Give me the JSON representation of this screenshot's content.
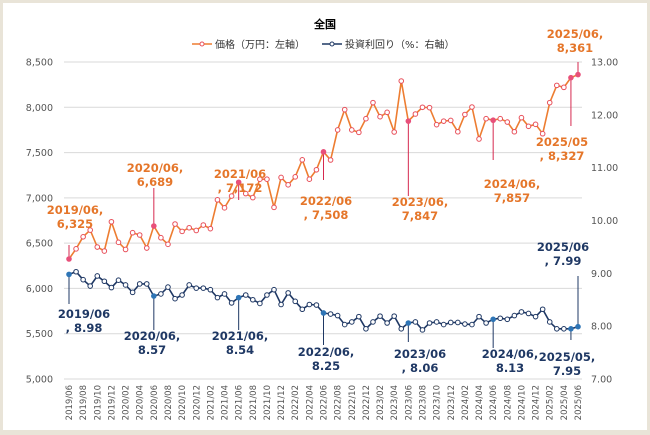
{
  "chart_data": {
    "type": "line",
    "title": "全国",
    "legend_position": "top",
    "grid": true,
    "colors": {
      "price": "#ed7d31",
      "price_marker": "#e8505b",
      "yield": "#1f3864",
      "yield_highlight": "#2e75b6"
    },
    "x": [
      "2019/06",
      "2019/07",
      "2019/08",
      "2019/09",
      "2019/10",
      "2019/11",
      "2019/12",
      "2020/01",
      "2020/02",
      "2020/03",
      "2020/04",
      "2020/05",
      "2020/06",
      "2020/07",
      "2020/08",
      "2020/09",
      "2020/10",
      "2020/11",
      "2020/12",
      "2021/01",
      "2021/02",
      "2021/03",
      "2021/04",
      "2021/05",
      "2021/06",
      "2021/07",
      "2021/08",
      "2021/09",
      "2021/10",
      "2021/11",
      "2021/12",
      "2022/01",
      "2022/02",
      "2022/03",
      "2022/04",
      "2022/05",
      "2022/06",
      "2022/07",
      "2022/08",
      "2022/09",
      "2022/10",
      "2022/11",
      "2022/12",
      "2023/01",
      "2023/02",
      "2023/03",
      "2023/04",
      "2023/05",
      "2023/06",
      "2023/07",
      "2023/08",
      "2023/09",
      "2023/10",
      "2023/11",
      "2023/12",
      "2024/01",
      "2024/02",
      "2024/03",
      "2024/04",
      "2024/05",
      "2024/06",
      "2024/07",
      "2024/08",
      "2024/09",
      "2024/10",
      "2024/11",
      "2024/12",
      "2025/01",
      "2025/02",
      "2025/03",
      "2025/04",
      "2025/05",
      "2025/06"
    ],
    "x_tick_labels": [
      "2019/06",
      "2019/08",
      "2019/10",
      "2019/12",
      "2020/02",
      "2020/04",
      "2020/06",
      "2020/08",
      "2020/10",
      "2020/12",
      "2021/02",
      "2021/04",
      "2021/06",
      "2021/08",
      "2021/10",
      "2021/12",
      "2022/02",
      "2022/04",
      "2022/06",
      "2022/08",
      "2022/10",
      "2022/12",
      "2023/02",
      "2023/04",
      "2023/06",
      "2023/08",
      "2023/10",
      "2023/12",
      "2024/02",
      "2024/04",
      "2024/06",
      "2024/08",
      "2024/10",
      "2024/12",
      "2025/02",
      "2025/04",
      "2025/06"
    ],
    "y_left": {
      "range": [
        5000,
        8500
      ],
      "ticks": [
        "5,000",
        "5,500",
        "6,000",
        "6,500",
        "7,000",
        "7,500",
        "8,000",
        "8,500"
      ]
    },
    "y_right": {
      "range": [
        7,
        13
      ],
      "ticks": [
        "7.00",
        "8.00",
        "9.00",
        "10.00",
        "11.00",
        "12.00",
        "13.00"
      ]
    },
    "series": [
      {
        "name": "価格（万円：左軸）",
        "axis": "left",
        "values": [
          6325,
          6437,
          6570,
          6644,
          6457,
          6413,
          6736,
          6509,
          6430,
          6615,
          6590,
          6446,
          6689,
          6560,
          6487,
          6711,
          6630,
          6670,
          6640,
          6700,
          6660,
          6978,
          6890,
          7020,
          7172,
          7047,
          7003,
          7206,
          7206,
          6895,
          7225,
          7144,
          7232,
          7420,
          7206,
          7310,
          7508,
          7418,
          7750,
          7974,
          7750,
          7723,
          7874,
          8051,
          7896,
          7944,
          7727,
          8290,
          7847,
          7926,
          8000,
          7996,
          7808,
          7847,
          7855,
          7730,
          7920,
          8003,
          7650,
          7874,
          7857,
          7874,
          7837,
          7730,
          7885,
          7790,
          7812,
          7708,
          8051,
          8242,
          8220,
          8327,
          8361
        ]
      },
      {
        "name": "投資利回り（%：右軸）",
        "axis": "right",
        "values": [
          8.98,
          9.03,
          8.88,
          8.76,
          8.95,
          8.85,
          8.73,
          8.87,
          8.78,
          8.64,
          8.8,
          8.8,
          8.57,
          8.61,
          8.74,
          8.52,
          8.59,
          8.78,
          8.72,
          8.72,
          8.69,
          8.54,
          8.61,
          8.44,
          8.54,
          8.59,
          8.5,
          8.43,
          8.59,
          8.69,
          8.41,
          8.63,
          8.47,
          8.32,
          8.41,
          8.4,
          8.25,
          8.23,
          8.2,
          8.03,
          8.08,
          8.18,
          7.95,
          8.08,
          8.19,
          8.06,
          8.19,
          7.95,
          8.06,
          8.08,
          7.93,
          8.06,
          8.08,
          8.03,
          8.07,
          8.07,
          8.04,
          8.03,
          8.18,
          8.06,
          8.13,
          8.15,
          8.13,
          8.2,
          8.27,
          8.24,
          8.18,
          8.32,
          8.08,
          7.95,
          7.95,
          7.95,
          7.99
        ]
      }
    ],
    "annotations": [
      {
        "series": 0,
        "x": "2019/06",
        "lines": [
          "2019/06,",
          "6,325"
        ]
      },
      {
        "series": 0,
        "x": "2020/06",
        "lines": [
          "2020/06,",
          "6,689"
        ]
      },
      {
        "series": 0,
        "x": "2021/06",
        "lines": [
          "2021/06",
          ", 7,172"
        ]
      },
      {
        "series": 0,
        "x": "2022/06",
        "lines": [
          "2022/06",
          ", 7,508"
        ]
      },
      {
        "series": 0,
        "x": "2023/06",
        "lines": [
          "2023/06,",
          "7,847"
        ]
      },
      {
        "series": 0,
        "x": "2024/06",
        "lines": [
          "2024/06,",
          "7,857"
        ]
      },
      {
        "series": 0,
        "x": "2025/05",
        "lines": [
          "2025/05",
          ", 8,327"
        ]
      },
      {
        "series": 0,
        "x": "2025/06",
        "lines": [
          "2025/06,",
          "8,361"
        ]
      },
      {
        "series": 1,
        "x": "2019/06",
        "lines": [
          "2019/06",
          ", 8.98"
        ]
      },
      {
        "series": 1,
        "x": "2020/06",
        "lines": [
          "2020/06,",
          "8.57"
        ]
      },
      {
        "series": 1,
        "x": "2021/06",
        "lines": [
          "2021/06,",
          "8.54"
        ]
      },
      {
        "series": 1,
        "x": "2022/06",
        "lines": [
          "2022/06,",
          "8.25"
        ]
      },
      {
        "series": 1,
        "x": "2023/06",
        "lines": [
          "2023/06",
          ", 8.06"
        ]
      },
      {
        "series": 1,
        "x": "2024/06",
        "lines": [
          "2024/06,",
          "8.13"
        ]
      },
      {
        "series": 1,
        "x": "2025/05",
        "lines": [
          "2025/05,",
          "7.95"
        ]
      },
      {
        "series": 1,
        "x": "2025/06",
        "lines": [
          "2025/06",
          ", 7.99"
        ]
      }
    ]
  }
}
